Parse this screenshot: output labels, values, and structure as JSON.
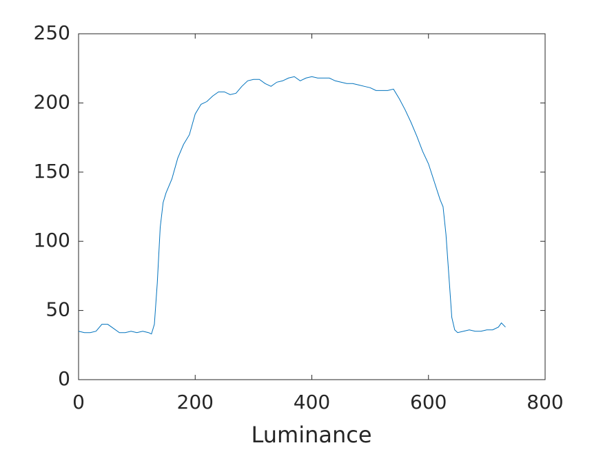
{
  "chart_data": {
    "type": "line",
    "xlabel": "Luminance",
    "x": [
      0,
      10,
      20,
      30,
      40,
      50,
      60,
      70,
      80,
      90,
      100,
      110,
      120,
      125,
      130,
      135,
      140,
      145,
      150,
      160,
      170,
      180,
      190,
      200,
      210,
      220,
      230,
      240,
      250,
      260,
      270,
      280,
      290,
      300,
      310,
      320,
      330,
      340,
      350,
      360,
      370,
      380,
      390,
      400,
      410,
      420,
      430,
      440,
      450,
      460,
      470,
      480,
      490,
      500,
      510,
      520,
      530,
      540,
      550,
      560,
      570,
      580,
      590,
      600,
      610,
      620,
      625,
      630,
      635,
      640,
      645,
      650,
      660,
      670,
      680,
      690,
      700,
      710,
      720,
      725,
      732
    ],
    "series": [
      {
        "color": "#0072bd",
        "values": [
          35,
          34,
          34,
          35,
          40,
          40,
          37,
          34,
          34,
          35,
          34,
          35,
          34,
          33,
          40,
          70,
          110,
          128,
          135,
          145,
          160,
          170,
          177,
          192,
          199,
          201,
          205,
          208,
          208,
          206,
          207,
          212,
          216,
          217,
          217,
          214,
          212,
          215,
          216,
          218,
          219,
          216,
          218,
          219,
          218,
          218,
          218,
          216,
          215,
          214,
          214,
          213,
          212,
          211,
          209,
          209,
          209,
          210,
          203,
          195,
          186,
          176,
          165,
          156,
          143,
          130,
          125,
          105,
          75,
          45,
          36,
          34,
          35,
          36,
          35,
          35,
          36,
          36,
          38,
          41,
          38
        ]
      }
    ],
    "xlim": [
      0,
      800
    ],
    "xticks": [
      0,
      200,
      400,
      600,
      800
    ],
    "ylim": [
      0,
      250
    ],
    "yticks": [
      0,
      50,
      100,
      150,
      200,
      250
    ]
  }
}
